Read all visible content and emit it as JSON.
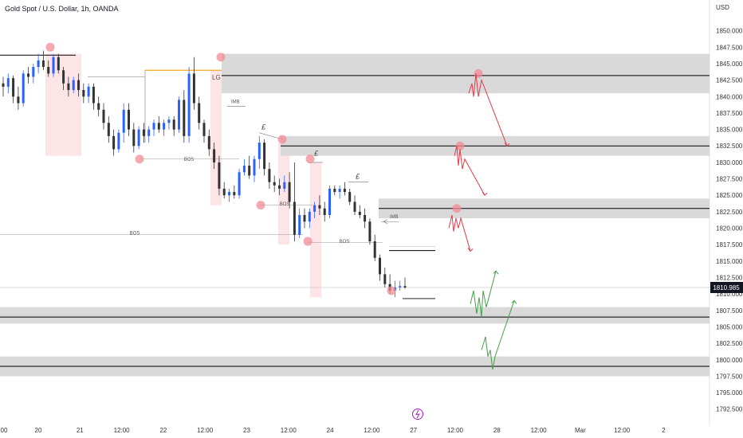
{
  "header": {
    "title": "Gold Spot / U.S. Dollar, 1h, OANDA"
  },
  "currency_label": "USD",
  "last_price_label": "1810.985",
  "bolt_icon": "lightning-icon",
  "chart_data": {
    "type": "candlestick",
    "title": "Gold Spot / U.S. Dollar, 1h, OANDA",
    "xlabel": "",
    "ylabel": "USD",
    "ylim": [
      1791.5,
      1852.5
    ],
    "y_ticks": [
      "1850.000",
      "1847.500",
      "1845.000",
      "1842.500",
      "1840.000",
      "1837.500",
      "1835.000",
      "1832.500",
      "1830.000",
      "1827.500",
      "1825.000",
      "1822.500",
      "1820.000",
      "1817.500",
      "1815.000",
      "1812.500",
      "1810.000",
      "1807.500",
      "1805.000",
      "1802.500",
      "1800.000",
      "1797.500",
      "1795.000",
      "1792.500"
    ],
    "x_ticks": [
      "00",
      "20",
      "21",
      "12:00",
      "22",
      "12:00",
      "23",
      "12:00",
      "24",
      "12:00",
      "27",
      "12:00",
      "28",
      "12:00",
      "Mar",
      "12:00",
      "2"
    ],
    "last_price": 1810.985,
    "colors": {
      "up": "#2962ff",
      "down": "#333333",
      "zone": "#d9d9d9",
      "marker": "#f28b96",
      "highlight": "#fce4e7",
      "bear_path": "#e63946",
      "bull_path": "#43a047",
      "orange_line": "#f5a623"
    },
    "candles": [
      {
        "o": 1842.0,
        "h": 1843.0,
        "l": 1840.0,
        "c": 1841.5
      },
      {
        "o": 1841.5,
        "h": 1843.5,
        "l": 1840.5,
        "c": 1842.8
      },
      {
        "o": 1842.8,
        "h": 1843.2,
        "l": 1839.0,
        "c": 1840.0
      },
      {
        "o": 1840.0,
        "h": 1841.5,
        "l": 1838.0,
        "c": 1839.0
      },
      {
        "o": 1839.0,
        "h": 1844.0,
        "l": 1838.5,
        "c": 1843.5
      },
      {
        "o": 1843.5,
        "h": 1844.5,
        "l": 1842.0,
        "c": 1843.0
      },
      {
        "o": 1843.0,
        "h": 1845.0,
        "l": 1842.0,
        "c": 1844.5
      },
      {
        "o": 1844.5,
        "h": 1846.5,
        "l": 1843.5,
        "c": 1845.5
      },
      {
        "o": 1845.5,
        "h": 1847.0,
        "l": 1844.0,
        "c": 1844.5
      },
      {
        "o": 1844.5,
        "h": 1845.5,
        "l": 1843.0,
        "c": 1843.5
      },
      {
        "o": 1843.5,
        "h": 1846.5,
        "l": 1843.0,
        "c": 1846.0
      },
      {
        "o": 1846.0,
        "h": 1846.5,
        "l": 1843.5,
        "c": 1844.0
      },
      {
        "o": 1844.0,
        "h": 1844.5,
        "l": 1841.0,
        "c": 1842.0
      },
      {
        "o": 1842.0,
        "h": 1843.0,
        "l": 1840.0,
        "c": 1841.0
      },
      {
        "o": 1841.0,
        "h": 1843.0,
        "l": 1840.5,
        "c": 1842.5
      },
      {
        "o": 1842.5,
        "h": 1843.5,
        "l": 1840.0,
        "c": 1841.0
      },
      {
        "o": 1841.0,
        "h": 1842.0,
        "l": 1839.0,
        "c": 1840.0
      },
      {
        "o": 1840.0,
        "h": 1842.0,
        "l": 1839.0,
        "c": 1841.5
      },
      {
        "o": 1841.5,
        "h": 1842.0,
        "l": 1838.0,
        "c": 1839.0
      },
      {
        "o": 1839.0,
        "h": 1840.0,
        "l": 1837.0,
        "c": 1838.0
      },
      {
        "o": 1838.0,
        "h": 1839.0,
        "l": 1835.0,
        "c": 1836.0
      },
      {
        "o": 1836.0,
        "h": 1837.0,
        "l": 1833.0,
        "c": 1834.0
      },
      {
        "o": 1834.0,
        "h": 1835.0,
        "l": 1831.0,
        "c": 1832.0
      },
      {
        "o": 1832.0,
        "h": 1835.0,
        "l": 1831.5,
        "c": 1834.5
      },
      {
        "o": 1834.5,
        "h": 1839.0,
        "l": 1833.0,
        "c": 1838.0
      },
      {
        "o": 1838.0,
        "h": 1839.0,
        "l": 1834.0,
        "c": 1835.0
      },
      {
        "o": 1835.0,
        "h": 1836.0,
        "l": 1831.5,
        "c": 1832.5
      },
      {
        "o": 1832.5,
        "h": 1835.5,
        "l": 1832.0,
        "c": 1835.0
      },
      {
        "o": 1835.0,
        "h": 1836.0,
        "l": 1833.0,
        "c": 1834.0
      },
      {
        "o": 1834.0,
        "h": 1835.5,
        "l": 1833.0,
        "c": 1835.0
      },
      {
        "o": 1835.0,
        "h": 1836.5,
        "l": 1834.0,
        "c": 1836.0
      },
      {
        "o": 1836.0,
        "h": 1837.0,
        "l": 1834.5,
        "c": 1835.0
      },
      {
        "o": 1835.0,
        "h": 1836.5,
        "l": 1834.0,
        "c": 1836.0
      },
      {
        "o": 1836.0,
        "h": 1837.0,
        "l": 1835.0,
        "c": 1836.5
      },
      {
        "o": 1836.5,
        "h": 1837.0,
        "l": 1834.0,
        "c": 1835.0
      },
      {
        "o": 1835.0,
        "h": 1840.0,
        "l": 1834.5,
        "c": 1839.5
      },
      {
        "o": 1839.5,
        "h": 1841.0,
        "l": 1833.0,
        "c": 1834.0
      },
      {
        "o": 1834.0,
        "h": 1844.5,
        "l": 1833.0,
        "c": 1843.5
      },
      {
        "o": 1843.5,
        "h": 1846.0,
        "l": 1838.0,
        "c": 1839.0
      },
      {
        "o": 1839.0,
        "h": 1840.0,
        "l": 1835.0,
        "c": 1836.0
      },
      {
        "o": 1836.0,
        "h": 1836.5,
        "l": 1833.0,
        "c": 1834.0
      },
      {
        "o": 1834.0,
        "h": 1835.0,
        "l": 1831.0,
        "c": 1832.0
      },
      {
        "o": 1832.0,
        "h": 1833.0,
        "l": 1829.0,
        "c": 1830.0
      },
      {
        "o": 1830.0,
        "h": 1831.0,
        "l": 1825.0,
        "c": 1826.0
      },
      {
        "o": 1826.0,
        "h": 1827.0,
        "l": 1824.5,
        "c": 1825.0
      },
      {
        "o": 1825.0,
        "h": 1826.0,
        "l": 1824.0,
        "c": 1825.5
      },
      {
        "o": 1825.5,
        "h": 1826.5,
        "l": 1824.5,
        "c": 1825.0
      },
      {
        "o": 1825.0,
        "h": 1829.0,
        "l": 1824.5,
        "c": 1828.5
      },
      {
        "o": 1828.5,
        "h": 1830.5,
        "l": 1828.0,
        "c": 1829.5
      },
      {
        "o": 1829.5,
        "h": 1831.0,
        "l": 1827.5,
        "c": 1828.0
      },
      {
        "o": 1828.0,
        "h": 1831.0,
        "l": 1827.0,
        "c": 1830.5
      },
      {
        "o": 1830.5,
        "h": 1834.0,
        "l": 1829.0,
        "c": 1833.0
      },
      {
        "o": 1833.0,
        "h": 1833.5,
        "l": 1828.0,
        "c": 1829.0
      },
      {
        "o": 1829.0,
        "h": 1830.0,
        "l": 1826.0,
        "c": 1827.0
      },
      {
        "o": 1827.0,
        "h": 1828.0,
        "l": 1825.5,
        "c": 1826.5
      },
      {
        "o": 1826.5,
        "h": 1827.5,
        "l": 1825.0,
        "c": 1826.0
      },
      {
        "o": 1826.0,
        "h": 1828.0,
        "l": 1825.5,
        "c": 1827.0
      },
      {
        "o": 1827.0,
        "h": 1828.5,
        "l": 1823.0,
        "c": 1824.0
      },
      {
        "o": 1824.0,
        "h": 1830.0,
        "l": 1818.0,
        "c": 1819.0
      },
      {
        "o": 1819.0,
        "h": 1823.0,
        "l": 1818.5,
        "c": 1822.0
      },
      {
        "o": 1822.0,
        "h": 1823.0,
        "l": 1820.0,
        "c": 1821.0
      },
      {
        "o": 1821.0,
        "h": 1823.0,
        "l": 1820.0,
        "c": 1822.5
      },
      {
        "o": 1822.5,
        "h": 1824.0,
        "l": 1821.5,
        "c": 1823.5
      },
      {
        "o": 1823.5,
        "h": 1825.0,
        "l": 1822.0,
        "c": 1823.0
      },
      {
        "o": 1823.0,
        "h": 1824.0,
        "l": 1821.0,
        "c": 1822.0
      },
      {
        "o": 1822.0,
        "h": 1826.5,
        "l": 1821.5,
        "c": 1826.0
      },
      {
        "o": 1826.0,
        "h": 1826.5,
        "l": 1825.0,
        "c": 1825.5
      },
      {
        "o": 1825.5,
        "h": 1826.5,
        "l": 1824.5,
        "c": 1826.0
      },
      {
        "o": 1826.0,
        "h": 1827.0,
        "l": 1825.0,
        "c": 1825.5
      },
      {
        "o": 1825.5,
        "h": 1826.0,
        "l": 1823.5,
        "c": 1824.0
      },
      {
        "o": 1824.0,
        "h": 1825.0,
        "l": 1822.0,
        "c": 1822.5
      },
      {
        "o": 1822.5,
        "h": 1823.5,
        "l": 1821.5,
        "c": 1822.0
      },
      {
        "o": 1822.0,
        "h": 1823.0,
        "l": 1820.0,
        "c": 1821.0
      },
      {
        "o": 1821.0,
        "h": 1821.5,
        "l": 1817.5,
        "c": 1818.0
      },
      {
        "o": 1818.0,
        "h": 1819.0,
        "l": 1815.0,
        "c": 1815.5
      },
      {
        "o": 1815.5,
        "h": 1816.0,
        "l": 1812.0,
        "c": 1813.0
      },
      {
        "o": 1813.0,
        "h": 1814.0,
        "l": 1811.0,
        "c": 1811.5
      },
      {
        "o": 1811.5,
        "h": 1813.0,
        "l": 1810.0,
        "c": 1810.5
      },
      {
        "o": 1810.5,
        "h": 1812.0,
        "l": 1809.5,
        "c": 1811.0
      },
      {
        "o": 1811.0,
        "h": 1812.0,
        "l": 1810.5,
        "c": 1811.2
      },
      {
        "o": 1811.2,
        "h": 1812.5,
        "l": 1810.8,
        "c": 1810.985
      }
    ],
    "supply_zones": [
      {
        "from": 1840.5,
        "to": 1846.5,
        "line": 1843.2
      },
      {
        "from": 1831.0,
        "to": 1834.0,
        "line": 1832.5
      },
      {
        "from": 1821.5,
        "to": 1824.5,
        "line": 1823.0
      }
    ],
    "demand_zones": [
      {
        "from": 1805.5,
        "to": 1808.0,
        "line": 1806.5
      },
      {
        "from": 1797.5,
        "to": 1800.5,
        "line": 1799.0
      }
    ],
    "annotations": {
      "bos": [
        "BOS",
        "BOS",
        "BOS",
        "BOS"
      ],
      "imb": [
        "IMB",
        "IMB"
      ],
      "lg": "LG",
      "pound": "£"
    }
  }
}
